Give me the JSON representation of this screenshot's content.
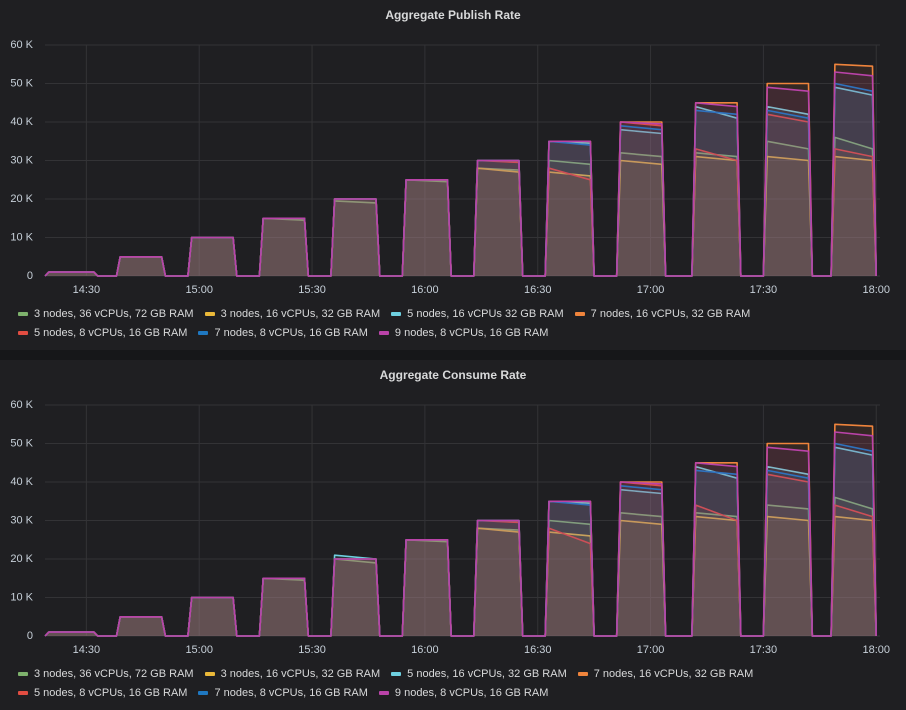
{
  "chart_data": [
    {
      "type": "line",
      "title": "Aggregate Publish Rate",
      "x": [
        "14:19",
        "14:20",
        "14:32",
        "14:33",
        "14:38",
        "14:39",
        "14:50",
        "14:51",
        "14:57",
        "14:58",
        "15:09",
        "15:10",
        "15:16",
        "15:17",
        "15:28",
        "15:29",
        "15:35",
        "15:36",
        "15:47",
        "15:48",
        "15:54",
        "15:55",
        "16:06",
        "16:07",
        "16:13",
        "16:14",
        "16:25",
        "16:26",
        "16:32",
        "16:33",
        "16:44",
        "16:45",
        "16:51",
        "16:52",
        "17:03",
        "17:04",
        "17:11",
        "17:12",
        "17:23",
        "17:24",
        "17:30",
        "17:31",
        "17:42",
        "17:43",
        "17:48",
        "17:49",
        "17:59",
        "18:00"
      ],
      "xlim": [
        "14:19",
        "18:01"
      ],
      "xticks": [
        "14:30",
        "15:00",
        "15:30",
        "16:00",
        "16:30",
        "17:00",
        "17:30",
        "18:00"
      ],
      "ylim": [
        0,
        60
      ],
      "yticks": [
        0,
        {
          "value": 10,
          "label": "10 K"
        },
        {
          "value": 20,
          "label": "20 K"
        },
        {
          "value": 30,
          "label": "30 K"
        },
        {
          "value": 40,
          "label": "40 K"
        },
        {
          "value": 50,
          "label": "50 K"
        },
        {
          "value": 60,
          "label": "60 K"
        }
      ],
      "grid": true,
      "series": [
        {
          "name": "3 nodes, 36 vCPUs, 72 GB RAM",
          "color": "#7eb26d",
          "values": [
            0,
            1,
            1,
            0,
            0,
            5,
            5,
            0,
            0,
            10,
            10,
            0,
            0,
            15,
            14.5,
            0,
            0,
            19.5,
            19,
            0,
            0,
            25,
            24.5,
            0,
            0,
            28,
            27.5,
            0,
            0,
            30,
            29,
            0,
            0,
            32,
            31,
            0,
            0,
            32,
            31,
            0,
            0,
            35,
            33,
            0,
            0,
            36,
            33,
            0
          ]
        },
        {
          "name": "3 nodes, 16 vCPUs, 32 GB RAM",
          "color": "#eab839",
          "values": [
            0,
            1,
            1,
            0,
            0,
            5,
            5,
            0,
            0,
            10,
            10,
            0,
            0,
            15,
            15,
            0,
            0,
            20,
            20,
            0,
            0,
            25,
            25,
            0,
            0,
            28,
            27,
            0,
            0,
            27,
            26,
            0,
            0,
            30,
            29,
            0,
            0,
            31,
            30,
            0,
            0,
            31,
            30,
            0,
            0,
            31,
            30,
            0
          ]
        },
        {
          "name": "5 nodes, 16 vCPUs 32 GB RAM",
          "color": "#6ed0e0",
          "values": [
            0,
            1,
            1,
            0,
            0,
            5,
            5,
            0,
            0,
            10,
            10,
            0,
            0,
            15,
            15,
            0,
            0,
            20,
            20,
            0,
            0,
            25,
            25,
            0,
            0,
            30,
            30,
            0,
            0,
            35,
            34.5,
            0,
            0,
            38,
            37,
            0,
            0,
            44,
            41,
            0,
            0,
            44,
            42,
            0,
            0,
            49,
            47,
            0
          ]
        },
        {
          "name": "7 nodes, 16 vCPUs, 32 GB RAM",
          "color": "#ef843c",
          "values": [
            0,
            1,
            1,
            0,
            0,
            5,
            5,
            0,
            0,
            10,
            10,
            0,
            0,
            15,
            15,
            0,
            0,
            20,
            20,
            0,
            0,
            25,
            25,
            0,
            0,
            30,
            30,
            0,
            0,
            35,
            35,
            0,
            0,
            40,
            40,
            0,
            0,
            45,
            45,
            0,
            0,
            50,
            50,
            0,
            0,
            55,
            54.5,
            0
          ]
        },
        {
          "name": "5 nodes, 8 vCPUs, 16 GB RAM",
          "color": "#e24d42",
          "values": [
            0,
            1,
            1,
            0,
            0,
            5,
            5,
            0,
            0,
            10,
            10,
            0,
            0,
            15,
            15,
            0,
            0,
            20,
            20,
            0,
            0,
            25,
            25,
            0,
            0,
            30,
            29.5,
            0,
            0,
            28,
            25,
            0,
            0,
            40,
            39,
            0,
            0,
            33,
            30,
            0,
            0,
            42,
            40,
            0,
            0,
            33,
            31,
            0
          ]
        },
        {
          "name": "7 nodes, 8 vCPUs, 16 GB RAM",
          "color": "#1f78c1",
          "values": [
            0,
            1,
            1,
            0,
            0,
            5,
            5,
            0,
            0,
            10,
            10,
            0,
            0,
            15,
            15,
            0,
            0,
            20,
            20,
            0,
            0,
            25,
            25,
            0,
            0,
            30,
            30,
            0,
            0,
            35,
            34,
            0,
            0,
            39,
            38,
            0,
            0,
            43,
            42,
            0,
            0,
            43,
            41,
            0,
            0,
            50,
            48,
            0
          ]
        },
        {
          "name": "9 nodes, 8 vCPUs, 16 GB RAM",
          "color": "#ba43a9",
          "values": [
            0,
            1,
            1,
            0,
            0,
            5,
            5,
            0,
            0,
            10,
            10,
            0,
            0,
            15,
            15,
            0,
            0,
            20,
            20,
            0,
            0,
            25,
            25,
            0,
            0,
            30,
            30,
            0,
            0,
            35,
            35,
            0,
            0,
            40,
            39.5,
            0,
            0,
            45,
            44,
            0,
            0,
            49,
            48,
            0,
            0,
            53,
            52,
            0
          ]
        }
      ]
    },
    {
      "type": "line",
      "title": "Aggregate Consume Rate",
      "x": [
        "14:19",
        "14:20",
        "14:32",
        "14:33",
        "14:38",
        "14:39",
        "14:50",
        "14:51",
        "14:57",
        "14:58",
        "15:09",
        "15:10",
        "15:16",
        "15:17",
        "15:28",
        "15:29",
        "15:35",
        "15:36",
        "15:47",
        "15:48",
        "15:54",
        "15:55",
        "16:06",
        "16:07",
        "16:13",
        "16:14",
        "16:25",
        "16:26",
        "16:32",
        "16:33",
        "16:44",
        "16:45",
        "16:51",
        "16:52",
        "17:03",
        "17:04",
        "17:11",
        "17:12",
        "17:23",
        "17:24",
        "17:30",
        "17:31",
        "17:42",
        "17:43",
        "17:48",
        "17:49",
        "17:59",
        "18:00"
      ],
      "xlim": [
        "14:19",
        "18:01"
      ],
      "xticks": [
        "14:30",
        "15:00",
        "15:30",
        "16:00",
        "16:30",
        "17:00",
        "17:30",
        "18:00"
      ],
      "ylim": [
        0,
        60
      ],
      "yticks": [
        0,
        {
          "value": 10,
          "label": "10 K"
        },
        {
          "value": 20,
          "label": "20 K"
        },
        {
          "value": 30,
          "label": "30 K"
        },
        {
          "value": 40,
          "label": "40 K"
        },
        {
          "value": 50,
          "label": "50 K"
        },
        {
          "value": 60,
          "label": "60 K"
        }
      ],
      "grid": true,
      "series": [
        {
          "name": "3 nodes, 36 vCPUs, 72 GB RAM",
          "color": "#7eb26d",
          "values": [
            0,
            1,
            1,
            0,
            0,
            5,
            5,
            0,
            0,
            10,
            10,
            0,
            0,
            15,
            14.5,
            0,
            0,
            20,
            19,
            0,
            0,
            25,
            24.5,
            0,
            0,
            28,
            27.5,
            0,
            0,
            30,
            29,
            0,
            0,
            32,
            31,
            0,
            0,
            32,
            31,
            0,
            0,
            34,
            33,
            0,
            0,
            36,
            33,
            0
          ]
        },
        {
          "name": "3 nodes, 16 vCPUs, 32 GB RAM",
          "color": "#eab839",
          "values": [
            0,
            1,
            1,
            0,
            0,
            5,
            5,
            0,
            0,
            10,
            10,
            0,
            0,
            15,
            15,
            0,
            0,
            20,
            20,
            0,
            0,
            25,
            25,
            0,
            0,
            28,
            27,
            0,
            0,
            27,
            26,
            0,
            0,
            30,
            29,
            0,
            0,
            31,
            30,
            0,
            0,
            31,
            30,
            0,
            0,
            31,
            30,
            0
          ]
        },
        {
          "name": "5 nodes, 16 vCPUs, 32 GB RAM",
          "color": "#6ed0e0",
          "values": [
            0,
            1,
            1,
            0,
            0,
            5,
            5,
            0,
            0,
            10,
            10,
            0,
            0,
            15,
            15,
            0,
            0,
            21,
            20,
            0,
            0,
            25,
            25,
            0,
            0,
            30,
            30,
            0,
            0,
            35,
            34.5,
            0,
            0,
            38,
            37,
            0,
            0,
            44,
            41,
            0,
            0,
            44,
            42,
            0,
            0,
            49,
            47,
            0
          ]
        },
        {
          "name": "7 nodes, 16 vCPUs, 32 GB RAM",
          "color": "#ef843c",
          "values": [
            0,
            1,
            1,
            0,
            0,
            5,
            5,
            0,
            0,
            10,
            10,
            0,
            0,
            15,
            15,
            0,
            0,
            20,
            20,
            0,
            0,
            25,
            25,
            0,
            0,
            30,
            30,
            0,
            0,
            35,
            35,
            0,
            0,
            40,
            40,
            0,
            0,
            45,
            45,
            0,
            0,
            50,
            50,
            0,
            0,
            55,
            54.5,
            0
          ]
        },
        {
          "name": "5 nodes, 8 vCPUs, 16 GB RAM",
          "color": "#e24d42",
          "values": [
            0,
            1,
            1,
            0,
            0,
            5,
            5,
            0,
            0,
            10,
            10,
            0,
            0,
            15,
            15,
            0,
            0,
            20,
            20,
            0,
            0,
            25,
            25,
            0,
            0,
            30,
            29.5,
            0,
            0,
            28,
            24,
            0,
            0,
            40,
            39,
            0,
            0,
            34,
            30,
            0,
            0,
            42,
            40,
            0,
            0,
            34,
            31,
            0
          ]
        },
        {
          "name": "7 nodes, 8 vCPUs, 16 GB RAM",
          "color": "#1f78c1",
          "values": [
            0,
            1,
            1,
            0,
            0,
            5,
            5,
            0,
            0,
            10,
            10,
            0,
            0,
            15,
            15,
            0,
            0,
            20,
            20,
            0,
            0,
            25,
            25,
            0,
            0,
            30,
            30,
            0,
            0,
            35,
            34,
            0,
            0,
            39,
            38,
            0,
            0,
            43,
            42,
            0,
            0,
            43,
            41,
            0,
            0,
            50,
            48,
            0
          ]
        },
        {
          "name": "9 nodes, 8 vCPUs, 16 GB RAM",
          "color": "#ba43a9",
          "values": [
            0,
            1,
            1,
            0,
            0,
            5,
            5,
            0,
            0,
            10,
            10,
            0,
            0,
            15,
            15,
            0,
            0,
            20,
            20,
            0,
            0,
            25,
            25,
            0,
            0,
            30,
            30,
            0,
            0,
            35,
            35,
            0,
            0,
            40,
            39.5,
            0,
            0,
            45,
            44,
            0,
            0,
            49,
            48,
            0,
            0,
            53,
            52,
            0
          ]
        }
      ]
    }
  ]
}
